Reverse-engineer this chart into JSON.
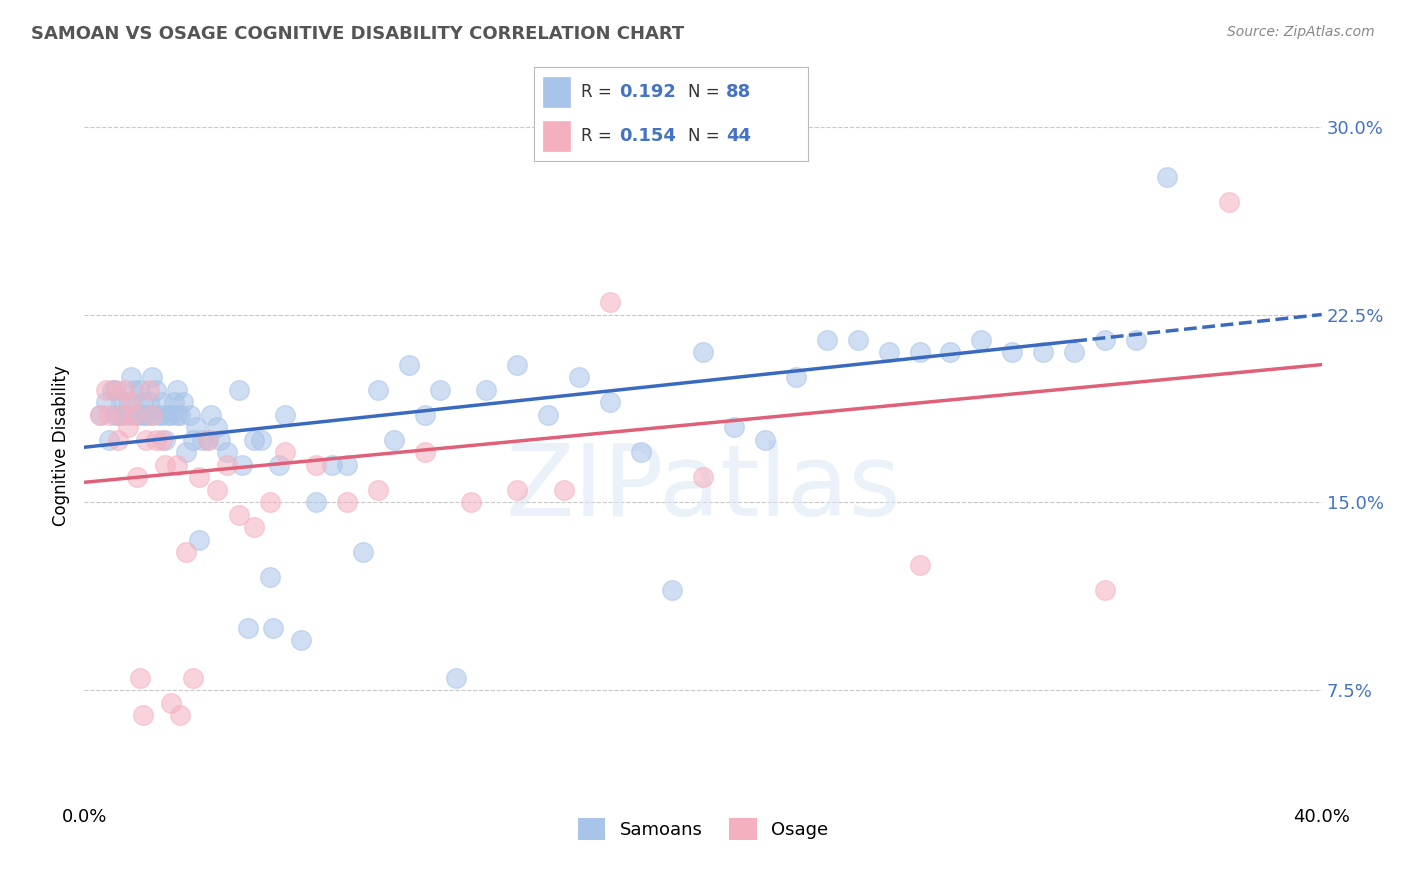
{
  "title": "SAMOAN VS OSAGE COGNITIVE DISABILITY CORRELATION CHART",
  "source": "Source: ZipAtlas.com",
  "ylabel": "Cognitive Disability",
  "xlim": [
    0.0,
    0.4
  ],
  "ylim": [
    0.03,
    0.315
  ],
  "yticks": [
    0.075,
    0.15,
    0.225,
    0.3
  ],
  "ytick_labels": [
    "7.5%",
    "15.0%",
    "22.5%",
    "30.0%"
  ],
  "xticks": [
    0.0,
    0.1,
    0.2,
    0.3,
    0.4
  ],
  "xtick_labels": [
    "0.0%",
    "",
    "",
    "",
    "40.0%"
  ],
  "samoans_R": 0.192,
  "samoans_N": 88,
  "osage_R": 0.154,
  "osage_N": 44,
  "samoan_color": "#a8c4e8",
  "osage_color": "#f5b0c0",
  "trend_samoan_color": "#3a6abf",
  "trend_osage_color": "#e0607a",
  "background_color": "#ffffff",
  "grid_color": "#c8c8c8",
  "samoans_x": [
    0.005,
    0.007,
    0.008,
    0.009,
    0.01,
    0.01,
    0.011,
    0.012,
    0.013,
    0.014,
    0.015,
    0.015,
    0.016,
    0.017,
    0.018,
    0.018,
    0.019,
    0.02,
    0.02,
    0.021,
    0.022,
    0.022,
    0.023,
    0.024,
    0.025,
    0.025,
    0.026,
    0.027,
    0.028,
    0.029,
    0.03,
    0.03,
    0.031,
    0.032,
    0.033,
    0.034,
    0.035,
    0.036,
    0.037,
    0.038,
    0.04,
    0.041,
    0.043,
    0.044,
    0.046,
    0.05,
    0.051,
    0.053,
    0.055,
    0.057,
    0.06,
    0.061,
    0.063,
    0.065,
    0.07,
    0.075,
    0.08,
    0.085,
    0.09,
    0.095,
    0.1,
    0.105,
    0.11,
    0.115,
    0.12,
    0.13,
    0.14,
    0.15,
    0.16,
    0.17,
    0.18,
    0.19,
    0.2,
    0.21,
    0.22,
    0.23,
    0.24,
    0.25,
    0.26,
    0.27,
    0.28,
    0.29,
    0.3,
    0.31,
    0.32,
    0.33,
    0.34,
    0.35
  ],
  "samoans_y": [
    0.185,
    0.19,
    0.175,
    0.195,
    0.185,
    0.195,
    0.185,
    0.19,
    0.185,
    0.19,
    0.2,
    0.185,
    0.195,
    0.185,
    0.195,
    0.185,
    0.19,
    0.185,
    0.185,
    0.19,
    0.2,
    0.185,
    0.195,
    0.185,
    0.19,
    0.185,
    0.175,
    0.185,
    0.185,
    0.19,
    0.195,
    0.185,
    0.185,
    0.19,
    0.17,
    0.185,
    0.175,
    0.18,
    0.135,
    0.175,
    0.175,
    0.185,
    0.18,
    0.175,
    0.17,
    0.195,
    0.165,
    0.1,
    0.175,
    0.175,
    0.12,
    0.1,
    0.165,
    0.185,
    0.095,
    0.15,
    0.165,
    0.165,
    0.13,
    0.195,
    0.175,
    0.205,
    0.185,
    0.195,
    0.08,
    0.195,
    0.205,
    0.185,
    0.2,
    0.19,
    0.17,
    0.115,
    0.21,
    0.18,
    0.175,
    0.2,
    0.215,
    0.215,
    0.21,
    0.21,
    0.21,
    0.215,
    0.21,
    0.21,
    0.21,
    0.215,
    0.215,
    0.28
  ],
  "osage_x": [
    0.005,
    0.007,
    0.008,
    0.01,
    0.011,
    0.012,
    0.013,
    0.014,
    0.015,
    0.016,
    0.017,
    0.018,
    0.019,
    0.02,
    0.021,
    0.022,
    0.023,
    0.025,
    0.026,
    0.028,
    0.03,
    0.031,
    0.033,
    0.035,
    0.037,
    0.04,
    0.043,
    0.046,
    0.05,
    0.055,
    0.06,
    0.065,
    0.075,
    0.085,
    0.095,
    0.11,
    0.125,
    0.14,
    0.155,
    0.17,
    0.2,
    0.27,
    0.33,
    0.37
  ],
  "osage_y": [
    0.185,
    0.195,
    0.185,
    0.195,
    0.175,
    0.185,
    0.195,
    0.18,
    0.19,
    0.185,
    0.16,
    0.08,
    0.065,
    0.175,
    0.195,
    0.185,
    0.175,
    0.175,
    0.165,
    0.07,
    0.165,
    0.065,
    0.13,
    0.08,
    0.16,
    0.175,
    0.155,
    0.165,
    0.145,
    0.14,
    0.15,
    0.17,
    0.165,
    0.15,
    0.155,
    0.17,
    0.15,
    0.155,
    0.155,
    0.23,
    0.16,
    0.125,
    0.115,
    0.27
  ],
  "trend_samoan_x0": 0.0,
  "trend_samoan_y0": 0.172,
  "trend_samoan_x1": 0.4,
  "trend_samoan_y1": 0.225,
  "trend_samoan_dash_start": 0.32,
  "trend_osage_x0": 0.0,
  "trend_osage_y0": 0.158,
  "trend_osage_x1": 0.4,
  "trend_osage_y1": 0.205,
  "legend_r1": "0.192",
  "legend_n1": "88",
  "legend_r2": "0.154",
  "legend_n2": "44"
}
